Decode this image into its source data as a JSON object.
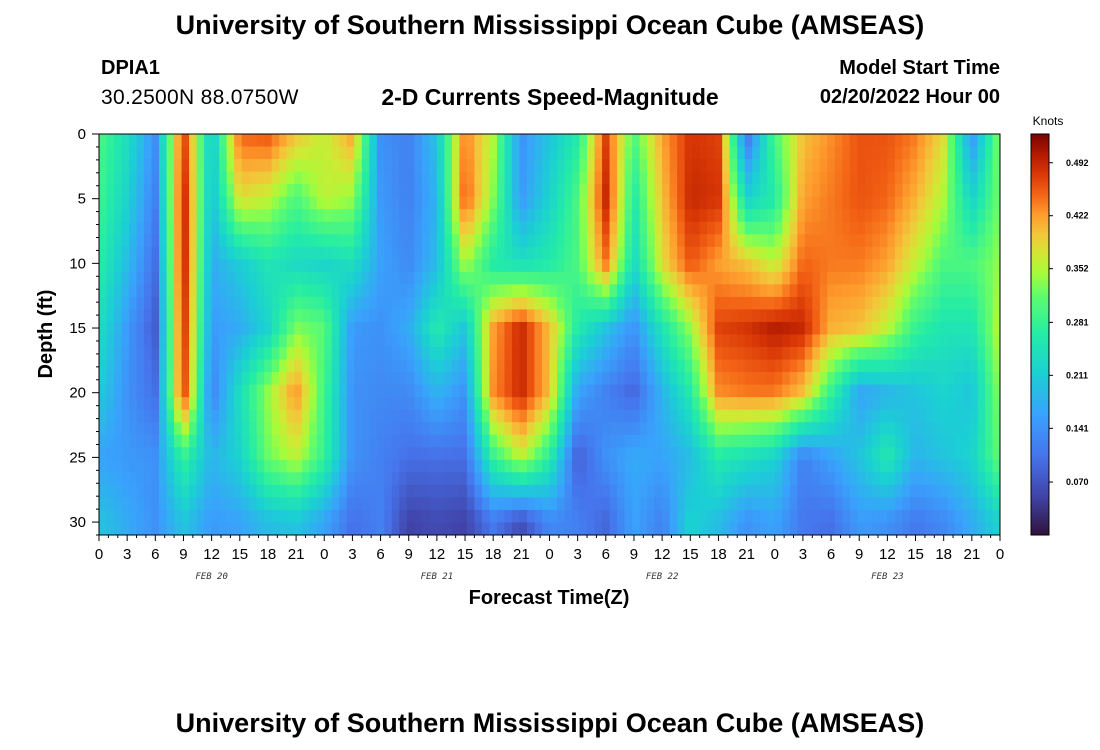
{
  "header": {
    "main_title": "University of Southern Mississippi Ocean Cube (AMSEAS)",
    "station_id": "DPIA1",
    "station_coords": "30.2500N  88.0750W",
    "chart_title": "2-D Currents Speed-Magnitude",
    "model_start_label": "Model Start Time",
    "model_start_time": "02/20/2022 Hour 00"
  },
  "footer": {
    "repeated_title": "University of Southern Mississippi Ocean Cube (AMSEAS)"
  },
  "chart_data": {
    "type": "heatmap",
    "title": "2-D Currents Speed-Magnitude",
    "xlabel": "Forecast Time(Z)",
    "ylabel": "Depth (ft)",
    "x_hours": [
      0,
      3,
      6,
      9,
      12,
      15,
      18,
      21,
      24,
      27,
      30,
      33,
      36,
      39,
      42,
      45,
      48,
      51,
      54,
      57,
      60,
      63,
      66,
      69,
      72,
      75,
      78,
      81,
      84,
      87,
      90,
      93,
      96
    ],
    "x_tick_labels": [
      "0",
      "3",
      "6",
      "9",
      "12",
      "15",
      "18",
      "21",
      "0",
      "3",
      "6",
      "9",
      "12",
      "15",
      "18",
      "21",
      "0",
      "3",
      "6",
      "9",
      "12",
      "15",
      "18",
      "21",
      "0",
      "3",
      "6",
      "9",
      "12",
      "15",
      "18",
      "21",
      "0"
    ],
    "xlim": [
      0,
      96
    ],
    "date_labels": [
      {
        "text": "FEB 20",
        "hour": 12
      },
      {
        "text": "FEB 21",
        "hour": 36
      },
      {
        "text": "FEB 22",
        "hour": 60
      },
      {
        "text": "FEB 23",
        "hour": 84
      }
    ],
    "y_ticks": [
      0,
      5,
      10,
      15,
      20,
      25,
      30
    ],
    "ylim": [
      0,
      31
    ],
    "y_inverted": true,
    "colorbar": {
      "unit": "Knots",
      "min": 0.0,
      "max": 0.53,
      "ticks": [
        0.07,
        0.141,
        0.211,
        0.281,
        0.352,
        0.422,
        0.492
      ],
      "tick_labels": [
        "0.070",
        "0.141",
        "0.211",
        "0.281",
        "0.352",
        "0.422",
        "0.492"
      ]
    },
    "grid": {
      "depths_ft": [
        0,
        5,
        10,
        15,
        20,
        25,
        30
      ],
      "hours": [
        0,
        3,
        6,
        9,
        12,
        15,
        18,
        21,
        24,
        27,
        30,
        33,
        36,
        39,
        42,
        45,
        48,
        51,
        54,
        57,
        60,
        63,
        66,
        69,
        72,
        75,
        78,
        81,
        84,
        87,
        90,
        93,
        96
      ],
      "speed_knots": [
        [
          0.3,
          0.24,
          0.14,
          0.48,
          0.2,
          0.45,
          0.46,
          0.4,
          0.36,
          0.42,
          0.14,
          0.12,
          0.2,
          0.44,
          0.35,
          0.14,
          0.2,
          0.26,
          0.47,
          0.3,
          0.42,
          0.48,
          0.47,
          0.1,
          0.3,
          0.4,
          0.43,
          0.46,
          0.46,
          0.44,
          0.38,
          0.14,
          0.34
        ],
        [
          0.29,
          0.22,
          0.12,
          0.5,
          0.19,
          0.38,
          0.36,
          0.3,
          0.36,
          0.34,
          0.15,
          0.12,
          0.18,
          0.46,
          0.33,
          0.15,
          0.22,
          0.3,
          0.49,
          0.26,
          0.4,
          0.49,
          0.48,
          0.22,
          0.26,
          0.42,
          0.44,
          0.46,
          0.45,
          0.41,
          0.35,
          0.22,
          0.33
        ],
        [
          0.27,
          0.19,
          0.1,
          0.5,
          0.17,
          0.21,
          0.25,
          0.23,
          0.22,
          0.24,
          0.16,
          0.13,
          0.19,
          0.35,
          0.26,
          0.24,
          0.26,
          0.3,
          0.44,
          0.23,
          0.38,
          0.46,
          0.42,
          0.4,
          0.36,
          0.45,
          0.44,
          0.44,
          0.42,
          0.36,
          0.3,
          0.3,
          0.34
        ],
        [
          0.24,
          0.15,
          0.08,
          0.49,
          0.15,
          0.17,
          0.22,
          0.33,
          0.31,
          0.15,
          0.14,
          0.17,
          0.26,
          0.2,
          0.42,
          0.49,
          0.4,
          0.26,
          0.2,
          0.14,
          0.25,
          0.34,
          0.47,
          0.48,
          0.5,
          0.49,
          0.41,
          0.4,
          0.36,
          0.28,
          0.25,
          0.25,
          0.36
        ],
        [
          0.21,
          0.14,
          0.1,
          0.48,
          0.12,
          0.24,
          0.34,
          0.43,
          0.29,
          0.14,
          0.13,
          0.13,
          0.18,
          0.14,
          0.43,
          0.49,
          0.4,
          0.16,
          0.12,
          0.09,
          0.18,
          0.26,
          0.43,
          0.44,
          0.44,
          0.4,
          0.28,
          0.16,
          0.18,
          0.2,
          0.22,
          0.2,
          0.34
        ],
        [
          0.16,
          0.15,
          0.14,
          0.28,
          0.18,
          0.22,
          0.32,
          0.36,
          0.28,
          0.14,
          0.12,
          0.1,
          0.1,
          0.1,
          0.28,
          0.36,
          0.27,
          0.08,
          0.14,
          0.17,
          0.16,
          0.19,
          0.26,
          0.24,
          0.22,
          0.12,
          0.16,
          0.2,
          0.26,
          0.18,
          0.2,
          0.22,
          0.32
        ],
        [
          0.2,
          0.17,
          0.14,
          0.2,
          0.15,
          0.16,
          0.19,
          0.2,
          0.16,
          0.1,
          0.12,
          0.05,
          0.06,
          0.05,
          0.11,
          0.06,
          0.13,
          0.12,
          0.09,
          0.16,
          0.12,
          0.22,
          0.19,
          0.14,
          0.16,
          0.11,
          0.1,
          0.15,
          0.14,
          0.11,
          0.13,
          0.17,
          0.22
        ]
      ]
    }
  }
}
